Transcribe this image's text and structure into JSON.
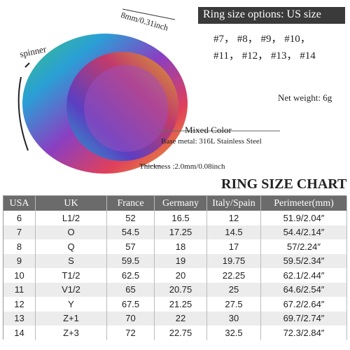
{
  "header": {
    "options_title": "Ring size options: US size",
    "size_lines": [
      "#7，  #8，  #9，  #10，",
      "#11，  #12，  #13，  #14"
    ]
  },
  "annotations": {
    "width": "8mm/0.31inch",
    "spinner": "spinner",
    "net_weight": "Net weight: 6g",
    "color": "Mixed Color",
    "metal": "Base metal: 316L Stainless Steel",
    "thickness": "Thickness :2.0mm/0.08inch"
  },
  "table": {
    "title": "RING SIZE CHART",
    "columns": [
      "USA",
      "UK",
      "France",
      "Germany",
      "Italy/Spain",
      "Perimeter(mm)"
    ],
    "rows": [
      [
        "6",
        "L1/2",
        "52",
        "16.5",
        "12",
        "51.9/2.04″"
      ],
      [
        "7",
        "O",
        "54.5",
        "17.25",
        "14.5",
        "54.4/2.14″"
      ],
      [
        "8",
        "Q",
        "57",
        "18",
        "17",
        "57/2.24″"
      ],
      [
        "9",
        "S",
        "59.5",
        "19",
        "19.75",
        "59.5/2.34″"
      ],
      [
        "10",
        "T1/2",
        "62.5",
        "20",
        "22.25",
        "62.1/2.44″"
      ],
      [
        "11",
        "V1/2",
        "65",
        "20.75",
        "25",
        "64.6/2.54″"
      ],
      [
        "12",
        "Y",
        "67.5",
        "21.25",
        "27.5",
        "67.2/2.64″"
      ],
      [
        "13",
        "Z+1",
        "70",
        "22",
        "30",
        "69.7/2.74″"
      ],
      [
        "14",
        "Z+3",
        "72",
        "22.75",
        "32.5",
        "72.3/2.84″"
      ]
    ]
  }
}
